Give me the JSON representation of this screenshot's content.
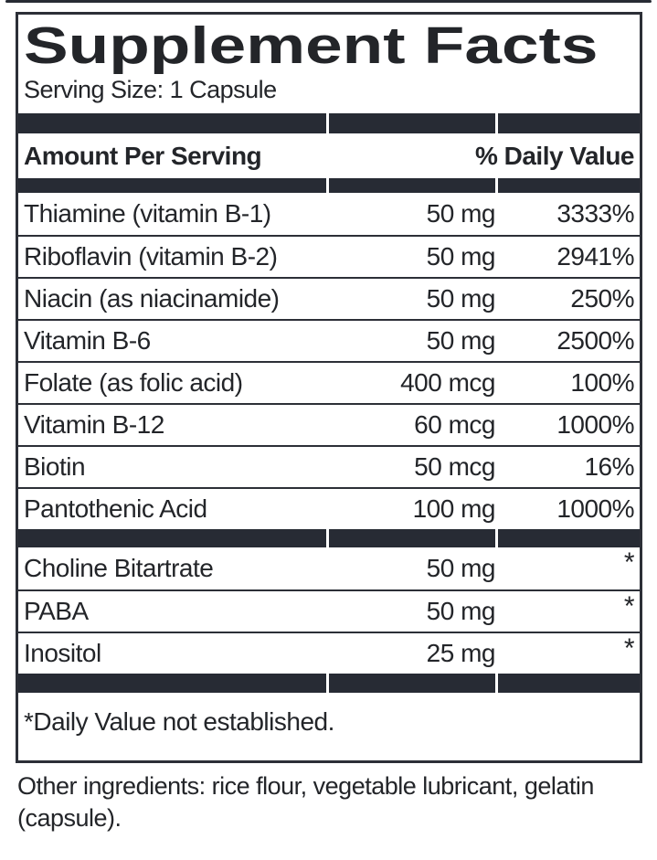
{
  "label": {
    "title": "Supplement Facts",
    "serving_size": "Serving Size: 1 Capsule",
    "header": {
      "left": "Amount Per Serving",
      "right": "% Daily Value"
    },
    "main_rows": [
      {
        "name": "Thiamine (vitamin B-1)",
        "amount": "50 mg",
        "dv": "3333%"
      },
      {
        "name": "Riboflavin (vitamin B-2)",
        "amount": "50 mg",
        "dv": "2941%"
      },
      {
        "name": "Niacin (as niacinamide)",
        "amount": "50 mg",
        "dv": "250%"
      },
      {
        "name": "Vitamin B-6",
        "amount": "50 mg",
        "dv": "2500%"
      },
      {
        "name": "Folate (as folic acid)",
        "amount": "400 mcg",
        "dv": "100%"
      },
      {
        "name": "Vitamin B-12",
        "amount": "60 mcg",
        "dv": "1000%"
      },
      {
        "name": "Biotin",
        "amount": "50 mcg",
        "dv": "16%"
      },
      {
        "name": "Pantothenic Acid",
        "amount": "100 mg",
        "dv": "1000%"
      }
    ],
    "secondary_rows": [
      {
        "name": "Choline Bitartrate",
        "amount": "50 mg",
        "dv": "*"
      },
      {
        "name": "PABA",
        "amount": "50 mg",
        "dv": "*"
      },
      {
        "name": "Inositol",
        "amount": "25 mg",
        "dv": "*"
      }
    ],
    "footnote": "*Daily Value not established.",
    "other_ingredients": "Other ingredients: rice flour, vegetable lubricant, gelatin (capsule)."
  },
  "colors": {
    "bar": "#272b34",
    "text": "#232529",
    "border": "#2c2f37",
    "background": "#ffffff"
  }
}
